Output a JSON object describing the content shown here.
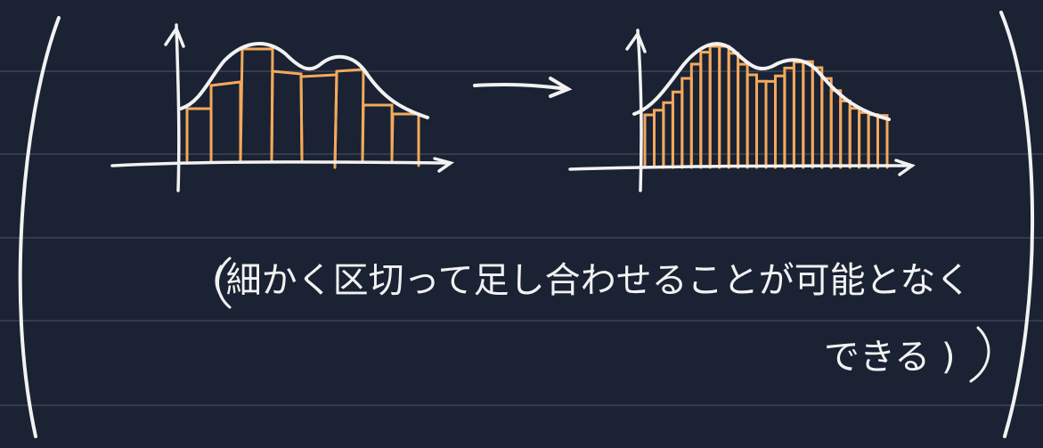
{
  "note": {
    "line1": "( 細かく区切って足し合わせることが可能となる )",
    "line1_display": "(細かく区切って足し合わせることが可能となく",
    "line2_display": "できる )"
  },
  "colors": {
    "background": "#1a2233",
    "ruled_line": "#333c4b",
    "ink": "#f2f2f2",
    "highlight": "#f3a95b"
  }
}
